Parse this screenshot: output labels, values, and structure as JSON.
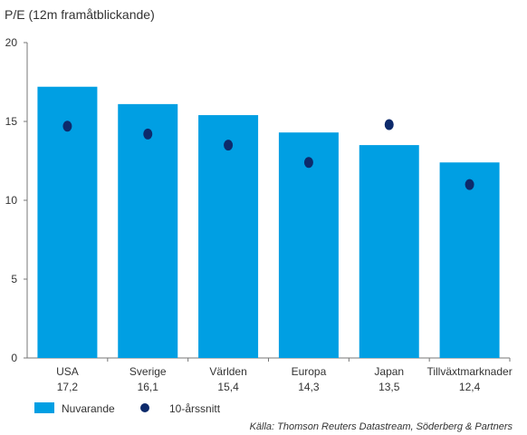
{
  "chart_data": {
    "type": "bar",
    "title": "P/E (12m framåtblickande)",
    "categories": [
      "USA",
      "Sverige",
      "Världen",
      "Europa",
      "Japan",
      "Tillväxtmarknader"
    ],
    "category_value_labels": [
      "17,2",
      "16,1",
      "15,4",
      "14,3",
      "13,5",
      "12,4"
    ],
    "series": [
      {
        "name": "Nuvarande",
        "type": "bar",
        "color": "#009fe3",
        "values": [
          17.2,
          16.1,
          15.4,
          14.3,
          13.5,
          12.4
        ]
      },
      {
        "name": "10-årssnitt",
        "type": "scatter",
        "color": "#0d2a6b",
        "values": [
          14.7,
          14.2,
          13.5,
          12.4,
          14.8,
          11.0
        ]
      }
    ],
    "y_ticks": [
      "0",
      "5",
      "10",
      "15",
      "20"
    ],
    "ylim": [
      0,
      20
    ],
    "xlabel": "",
    "ylabel": "",
    "grid": false,
    "legend_position": "bottom-left",
    "source": "Källa: Thomson Reuters Datastream, Söderberg & Partners"
  }
}
